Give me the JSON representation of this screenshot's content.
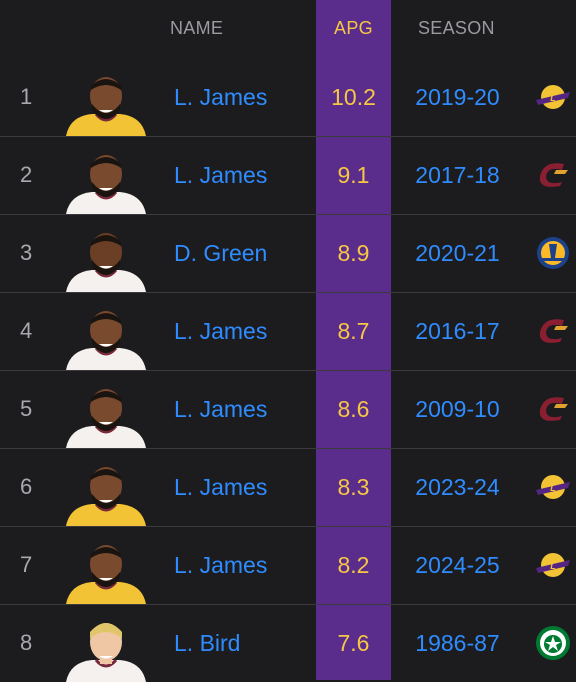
{
  "header": {
    "name_label": "NAME",
    "apg_label": "APG",
    "season_label": "SEASON"
  },
  "rows": [
    {
      "rank": "1",
      "name": "L. James",
      "apg": "10.2",
      "season": "2019-20",
      "team_icon": "lakers-logo-icon",
      "jersey_color": "#f2c335",
      "skin": "#7a4a2e"
    },
    {
      "rank": "2",
      "name": "L. James",
      "apg": "9.1",
      "season": "2017-18",
      "team_icon": "cavaliers-logo-icon",
      "jersey_color": "#f4f1ee",
      "skin": "#7a4a2e"
    },
    {
      "rank": "3",
      "name": "D. Green",
      "apg": "8.9",
      "season": "2020-21",
      "team_icon": "warriors-logo-icon",
      "jersey_color": "#f4f1ee",
      "skin": "#6b3f26"
    },
    {
      "rank": "4",
      "name": "L. James",
      "apg": "8.7",
      "season": "2016-17",
      "team_icon": "cavaliers-logo-icon",
      "jersey_color": "#f4f1ee",
      "skin": "#7a4a2e"
    },
    {
      "rank": "5",
      "name": "L. James",
      "apg": "8.6",
      "season": "2009-10",
      "team_icon": "cavaliers-logo-icon",
      "jersey_color": "#f4f1ee",
      "skin": "#7a4a2e"
    },
    {
      "rank": "6",
      "name": "L. James",
      "apg": "8.3",
      "season": "2023-24",
      "team_icon": "lakers-logo-icon",
      "jersey_color": "#f2c335",
      "skin": "#7a4a2e"
    },
    {
      "rank": "7",
      "name": "L. James",
      "apg": "8.2",
      "season": "2024-25",
      "team_icon": "lakers-logo-icon",
      "jersey_color": "#f2c335",
      "skin": "#7a4a2e"
    },
    {
      "rank": "8",
      "name": "L. Bird",
      "apg": "7.6",
      "season": "1986-87",
      "team_icon": "celtics-logo-icon",
      "jersey_color": "#f4f1ee",
      "skin": "#f0c7a4"
    }
  ],
  "colors": {
    "background": "#1c1c1e",
    "apg_band": "#5a2d8c",
    "accent_blue": "#2f8cff",
    "accent_gold": "#f6c744",
    "header_gray": "#9a9aa0"
  }
}
